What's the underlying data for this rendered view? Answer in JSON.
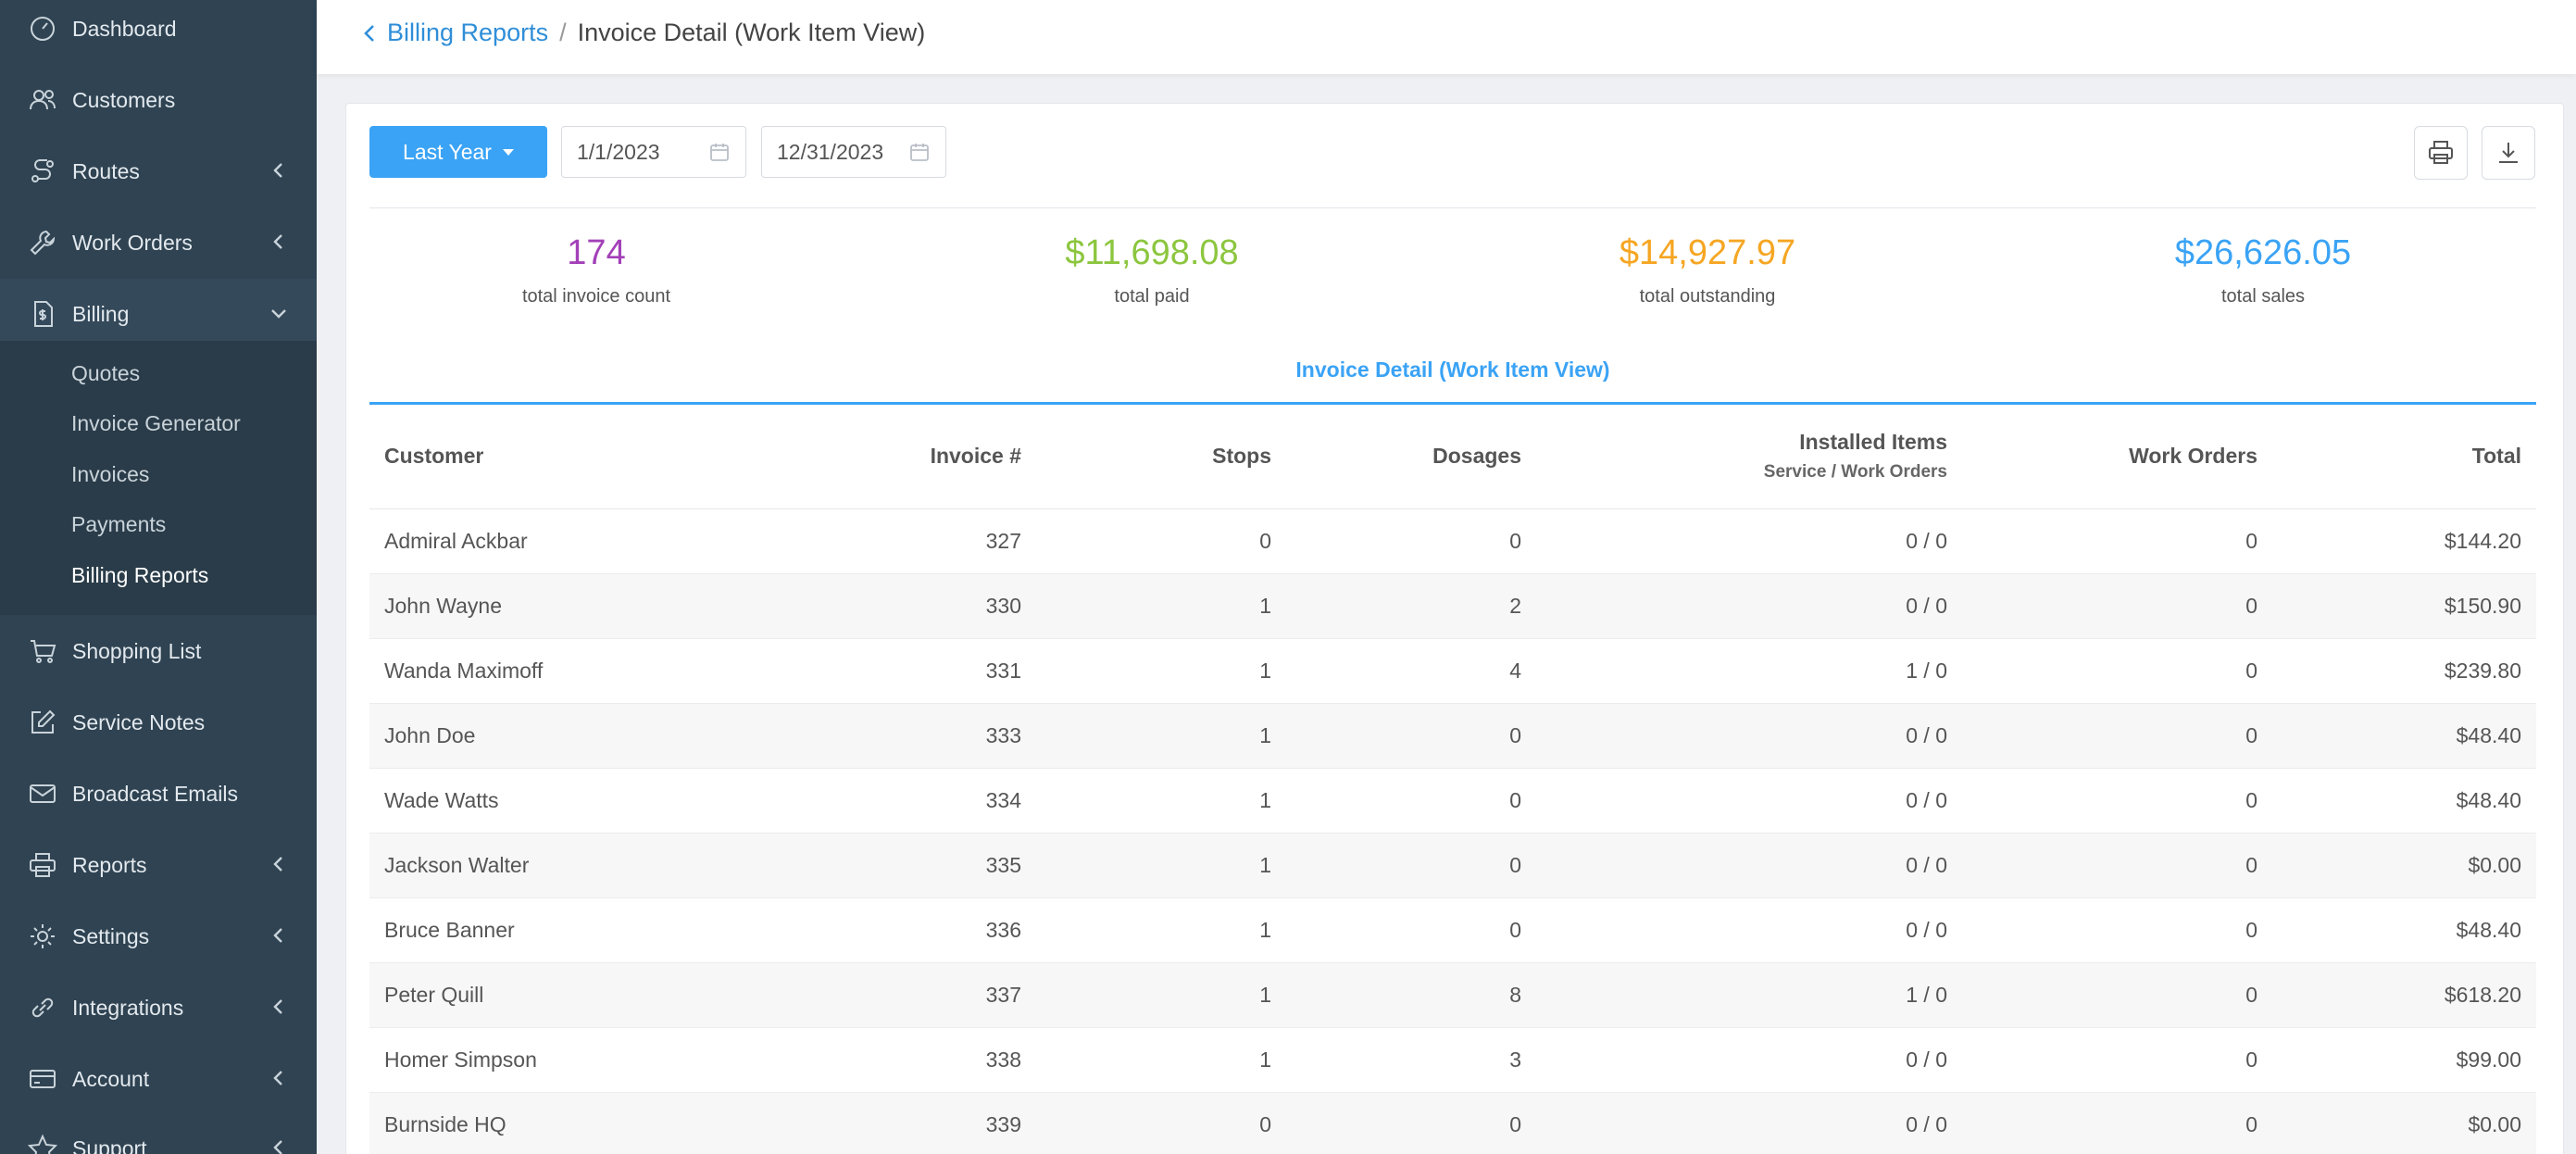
{
  "sidebar": {
    "items": [
      {
        "label": "Dashboard",
        "icon": "dashboard-icon"
      },
      {
        "label": "Customers",
        "icon": "users-icon"
      },
      {
        "label": "Routes",
        "icon": "route-icon"
      },
      {
        "label": "Work Orders",
        "icon": "wrench-icon"
      },
      {
        "label": "Billing",
        "icon": "invoice-icon"
      },
      {
        "label": "Shopping List",
        "icon": "cart-icon"
      },
      {
        "label": "Service Notes",
        "icon": "edit-icon"
      },
      {
        "label": "Broadcast Emails",
        "icon": "mail-icon"
      },
      {
        "label": "Reports",
        "icon": "printer-icon"
      },
      {
        "label": "Settings",
        "icon": "gear-icon"
      },
      {
        "label": "Integrations",
        "icon": "link-icon"
      },
      {
        "label": "Account",
        "icon": "card-icon"
      },
      {
        "label": "Support",
        "icon": "star-icon"
      }
    ],
    "billing_sub": [
      "Quotes",
      "Invoice Generator",
      "Invoices",
      "Payments",
      "Billing Reports"
    ]
  },
  "header": {
    "back_label": "Billing Reports",
    "separator": "/",
    "current": "Invoice Detail (Work Item View)"
  },
  "filters": {
    "range_label": "Last Year",
    "start_date": "1/1/2023",
    "end_date": "12/31/2023"
  },
  "stats": [
    {
      "value": "174",
      "label": "total invoice count",
      "color": "#a340b8"
    },
    {
      "value": "$11,698.08",
      "label": "total paid",
      "color": "#8cc63f"
    },
    {
      "value": "$14,927.97",
      "label": "total outstanding",
      "color": "#f5a623"
    },
    {
      "value": "$26,626.05",
      "label": "total sales",
      "color": "#3aa3f5"
    }
  ],
  "report_title": "Invoice Detail (Work Item View)",
  "table": {
    "headers": {
      "customer": "Customer",
      "invoice": "Invoice #",
      "stops": "Stops",
      "dosages": "Dosages",
      "installed": "Installed Items",
      "installed_sub": "Service / Work Orders",
      "work_orders": "Work Orders",
      "total": "Total"
    },
    "rows": [
      [
        "Admiral Ackbar",
        "327",
        "0",
        "0",
        "0 / 0",
        "0",
        "$144.20"
      ],
      [
        "John Wayne",
        "330",
        "1",
        "2",
        "0 / 0",
        "0",
        "$150.90"
      ],
      [
        "Wanda Maximoff",
        "331",
        "1",
        "4",
        "1 / 0",
        "0",
        "$239.80"
      ],
      [
        "John Doe",
        "333",
        "1",
        "0",
        "0 / 0",
        "0",
        "$48.40"
      ],
      [
        "Wade Watts",
        "334",
        "1",
        "0",
        "0 / 0",
        "0",
        "$48.40"
      ],
      [
        "Jackson Walter",
        "335",
        "1",
        "0",
        "0 / 0",
        "0",
        "$0.00"
      ],
      [
        "Bruce Banner",
        "336",
        "1",
        "0",
        "0 / 0",
        "0",
        "$48.40"
      ],
      [
        "Peter Quill",
        "337",
        "1",
        "8",
        "1 / 0",
        "0",
        "$618.20"
      ],
      [
        "Homer Simpson",
        "338",
        "1",
        "3",
        "0 / 0",
        "0",
        "$99.00"
      ],
      [
        "Burnside HQ",
        "339",
        "0",
        "0",
        "0 / 0",
        "0",
        "$0.00"
      ]
    ]
  }
}
